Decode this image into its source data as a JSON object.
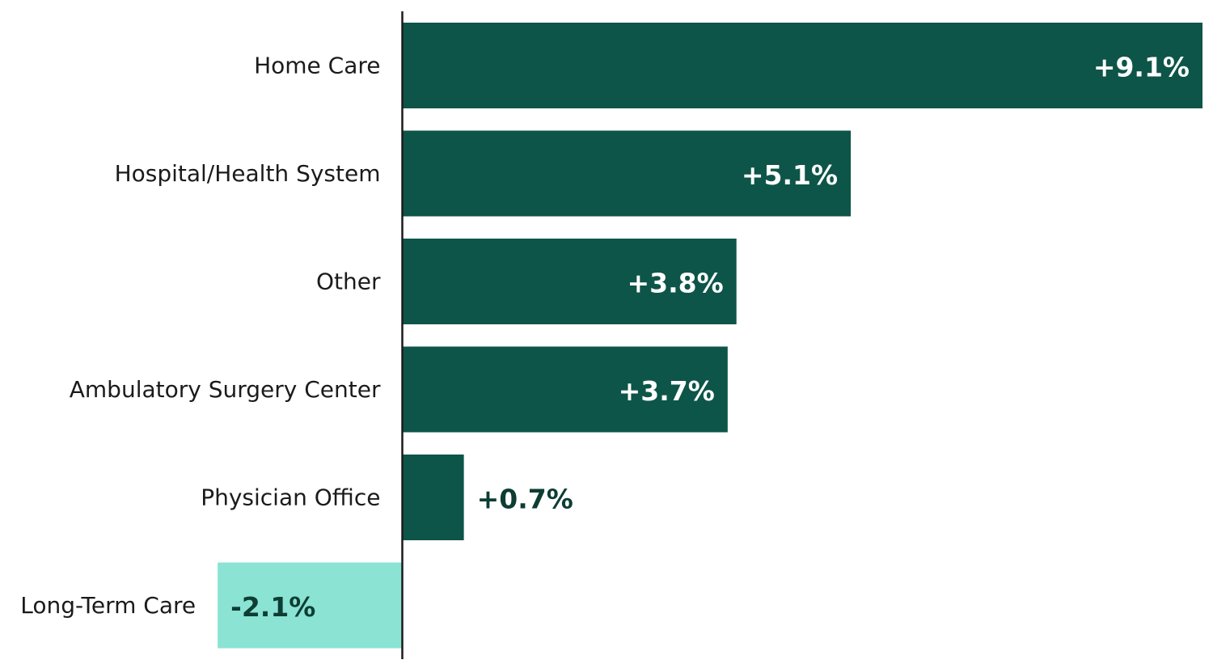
{
  "chart_data": {
    "type": "bar",
    "orientation": "horizontal",
    "title": "",
    "xlabel": "",
    "ylabel": "",
    "categories": [
      "Home Care",
      "Hospital/Health System",
      "Other",
      "Ambulatory Surgery Center",
      "Physician Office",
      "Long-Term Care"
    ],
    "values": [
      9.1,
      5.1,
      3.8,
      3.7,
      0.7,
      -2.1
    ],
    "value_labels": [
      "+9.1%",
      "+5.1%",
      "+3.8%",
      "+3.7%",
      "+0.7%",
      "-2.1%"
    ],
    "xlim": [
      -2.1,
      9.1
    ],
    "grid": false,
    "legend": "none",
    "colors": {
      "positive": "#0d5548",
      "negative": "#8ae3d3",
      "label_on_dark": "#ffffff",
      "label_dark": "#0d3d33",
      "axis": "#1b1b1b"
    }
  }
}
